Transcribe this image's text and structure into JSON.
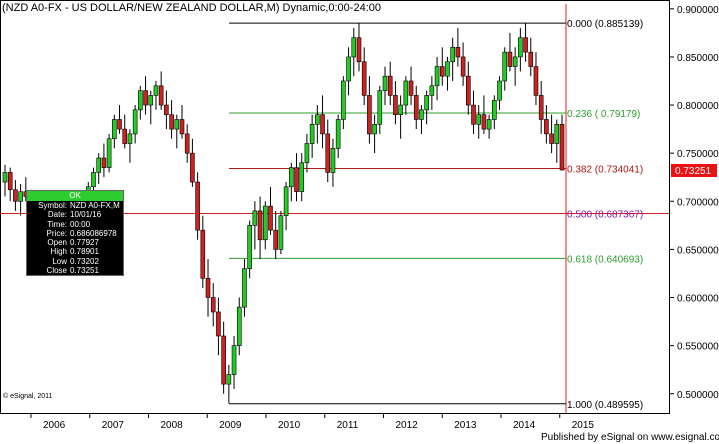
{
  "title": "(NZD A0-FX - US DOLLAR/NEW ZEALAND DOLLAR,M) Dynamic,0:00-24:00",
  "copyright": "© eSignal, 2011",
  "published": "Published by eSignal on www.esignal.com",
  "price_tag": "0.73251",
  "colors": {
    "up": "#22cc22",
    "down": "#cc2222",
    "bar": "#000000",
    "fib_green": "#2e9e2e",
    "fib_red": "#b01818",
    "fib_purple": "#7a1fa2",
    "fib_black": "#000000",
    "tag_bg": "#ee1111"
  },
  "data_box": {
    "header": "OK",
    "rows": [
      {
        "k": "Symbol:",
        "v": "NZD A0-FX,M"
      },
      {
        "k": "Date:",
        "v": "10/01/16"
      },
      {
        "k": "Time:",
        "v": "00:00"
      },
      {
        "k": "Price:",
        "v": "0.686086978"
      },
      {
        "k": "Open",
        "v": "0.77927"
      },
      {
        "k": "High",
        "v": "0.78901"
      },
      {
        "k": "Low",
        "v": "0.73202"
      },
      {
        "k": "Close",
        "v": "0.73251"
      }
    ]
  },
  "chart_data": {
    "type": "candlestick",
    "title": "(NZD A0-FX - US DOLLAR/NEW ZEALAND DOLLAR,M) Dynamic,0:00-24:00",
    "x_ticks": [
      "2006",
      "2007",
      "2008",
      "2009",
      "2010",
      "2011",
      "2012",
      "2013",
      "2014",
      "2015"
    ],
    "y_ticks": [
      "0.500000",
      "0.550000",
      "0.600000",
      "0.650000",
      "0.700000",
      "0.750000",
      "0.800000",
      "0.850000",
      "0.900000"
    ],
    "ylim": [
      0.48,
      0.905
    ],
    "fib_levels": [
      {
        "label": "0.000 (0.885139)",
        "value": 0.885139,
        "color": "#000000"
      },
      {
        "label": "0.236 ( 0.79179)",
        "value": 0.79179,
        "color": "#2e9e2e"
      },
      {
        "label": "0.382 (0.734041)",
        "value": 0.734041,
        "color": "#b01818"
      },
      {
        "label": "0.500 (0.687367)",
        "value": 0.687367,
        "color": "#7a1fa2"
      },
      {
        "label": "0.618 (0.640693)",
        "value": 0.640693,
        "color": "#2e9e2e"
      },
      {
        "label": "1.000 (0.489595)",
        "value": 0.489595,
        "color": "#000000"
      }
    ],
    "ohlc": [
      [
        0.72,
        0.738,
        0.705,
        0.73
      ],
      [
        0.73,
        0.735,
        0.7,
        0.712
      ],
      [
        0.712,
        0.722,
        0.69,
        0.7
      ],
      [
        0.7,
        0.718,
        0.685,
        0.71
      ],
      [
        0.71,
        0.725,
        0.7,
        0.705
      ],
      [
        0.705,
        0.712,
        0.68,
        0.69
      ],
      [
        0.69,
        0.7,
        0.66,
        0.665
      ],
      [
        0.665,
        0.68,
        0.64,
        0.65
      ],
      [
        0.65,
        0.668,
        0.63,
        0.66
      ],
      [
        0.66,
        0.68,
        0.64,
        0.675
      ],
      [
        0.675,
        0.69,
        0.66,
        0.68
      ],
      [
        0.68,
        0.695,
        0.67,
        0.688
      ],
      [
        0.688,
        0.7,
        0.672,
        0.68
      ],
      [
        0.68,
        0.692,
        0.66,
        0.67
      ],
      [
        0.67,
        0.69,
        0.655,
        0.685
      ],
      [
        0.685,
        0.705,
        0.675,
        0.7
      ],
      [
        0.7,
        0.72,
        0.69,
        0.715
      ],
      [
        0.715,
        0.735,
        0.705,
        0.73
      ],
      [
        0.73,
        0.75,
        0.718,
        0.745
      ],
      [
        0.745,
        0.76,
        0.725,
        0.735
      ],
      [
        0.735,
        0.77,
        0.73,
        0.765
      ],
      [
        0.765,
        0.79,
        0.755,
        0.785
      ],
      [
        0.785,
        0.8,
        0.77,
        0.775
      ],
      [
        0.775,
        0.79,
        0.755,
        0.76
      ],
      [
        0.76,
        0.775,
        0.74,
        0.77
      ],
      [
        0.77,
        0.8,
        0.76,
        0.795
      ],
      [
        0.795,
        0.82,
        0.785,
        0.815
      ],
      [
        0.815,
        0.83,
        0.79,
        0.8
      ],
      [
        0.8,
        0.815,
        0.78,
        0.81
      ],
      [
        0.81,
        0.825,
        0.795,
        0.82
      ],
      [
        0.82,
        0.835,
        0.795,
        0.8
      ],
      [
        0.8,
        0.815,
        0.775,
        0.79
      ],
      [
        0.79,
        0.805,
        0.765,
        0.775
      ],
      [
        0.775,
        0.79,
        0.755,
        0.785
      ],
      [
        0.785,
        0.8,
        0.765,
        0.77
      ],
      [
        0.77,
        0.78,
        0.74,
        0.75
      ],
      [
        0.75,
        0.765,
        0.715,
        0.72
      ],
      [
        0.72,
        0.73,
        0.66,
        0.67
      ],
      [
        0.67,
        0.685,
        0.61,
        0.62
      ],
      [
        0.62,
        0.64,
        0.58,
        0.6
      ],
      [
        0.6,
        0.615,
        0.57,
        0.585
      ],
      [
        0.585,
        0.6,
        0.54,
        0.56
      ],
      [
        0.56,
        0.575,
        0.5,
        0.51
      ],
      [
        0.51,
        0.53,
        0.49,
        0.52
      ],
      [
        0.52,
        0.56,
        0.505,
        0.55
      ],
      [
        0.55,
        0.6,
        0.54,
        0.59
      ],
      [
        0.59,
        0.64,
        0.58,
        0.63
      ],
      [
        0.63,
        0.68,
        0.62,
        0.675
      ],
      [
        0.675,
        0.7,
        0.65,
        0.69
      ],
      [
        0.69,
        0.705,
        0.64,
        0.66
      ],
      [
        0.66,
        0.7,
        0.65,
        0.695
      ],
      [
        0.695,
        0.715,
        0.665,
        0.67
      ],
      [
        0.67,
        0.69,
        0.64,
        0.65
      ],
      [
        0.65,
        0.69,
        0.645,
        0.685
      ],
      [
        0.685,
        0.72,
        0.67,
        0.715
      ],
      [
        0.715,
        0.74,
        0.7,
        0.735
      ],
      [
        0.735,
        0.75,
        0.7,
        0.71
      ],
      [
        0.71,
        0.75,
        0.7,
        0.74
      ],
      [
        0.74,
        0.77,
        0.73,
        0.76
      ],
      [
        0.76,
        0.79,
        0.745,
        0.78
      ],
      [
        0.78,
        0.8,
        0.76,
        0.79
      ],
      [
        0.79,
        0.81,
        0.755,
        0.77
      ],
      [
        0.77,
        0.785,
        0.72,
        0.73
      ],
      [
        0.73,
        0.765,
        0.715,
        0.755
      ],
      [
        0.755,
        0.79,
        0.745,
        0.785
      ],
      [
        0.785,
        0.83,
        0.775,
        0.825
      ],
      [
        0.825,
        0.86,
        0.81,
        0.85
      ],
      [
        0.85,
        0.88,
        0.83,
        0.87
      ],
      [
        0.87,
        0.885,
        0.835,
        0.845
      ],
      [
        0.845,
        0.86,
        0.8,
        0.81
      ],
      [
        0.81,
        0.83,
        0.76,
        0.77
      ],
      [
        0.77,
        0.79,
        0.75,
        0.78
      ],
      [
        0.78,
        0.82,
        0.77,
        0.815
      ],
      [
        0.815,
        0.84,
        0.8,
        0.83
      ],
      [
        0.83,
        0.845,
        0.8,
        0.81
      ],
      [
        0.81,
        0.825,
        0.78,
        0.79
      ],
      [
        0.79,
        0.81,
        0.765,
        0.8
      ],
      [
        0.8,
        0.83,
        0.79,
        0.825
      ],
      [
        0.825,
        0.84,
        0.8,
        0.81
      ],
      [
        0.81,
        0.82,
        0.775,
        0.785
      ],
      [
        0.785,
        0.8,
        0.77,
        0.795
      ],
      [
        0.795,
        0.815,
        0.78,
        0.81
      ],
      [
        0.81,
        0.83,
        0.795,
        0.82
      ],
      [
        0.82,
        0.85,
        0.805,
        0.84
      ],
      [
        0.84,
        0.86,
        0.82,
        0.83
      ],
      [
        0.83,
        0.85,
        0.815,
        0.845
      ],
      [
        0.845,
        0.87,
        0.825,
        0.86
      ],
      [
        0.86,
        0.88,
        0.84,
        0.85
      ],
      [
        0.85,
        0.865,
        0.82,
        0.83
      ],
      [
        0.83,
        0.845,
        0.79,
        0.8
      ],
      [
        0.8,
        0.815,
        0.77,
        0.78
      ],
      [
        0.78,
        0.8,
        0.765,
        0.79
      ],
      [
        0.79,
        0.81,
        0.77,
        0.775
      ],
      [
        0.775,
        0.79,
        0.765,
        0.785
      ],
      [
        0.785,
        0.81,
        0.775,
        0.805
      ],
      [
        0.805,
        0.83,
        0.795,
        0.825
      ],
      [
        0.825,
        0.86,
        0.815,
        0.855
      ],
      [
        0.855,
        0.875,
        0.835,
        0.84
      ],
      [
        0.84,
        0.86,
        0.82,
        0.85
      ],
      [
        0.85,
        0.88,
        0.835,
        0.87
      ],
      [
        0.87,
        0.885,
        0.845,
        0.855
      ],
      [
        0.855,
        0.87,
        0.83,
        0.84
      ],
      [
        0.84,
        0.855,
        0.8,
        0.81
      ],
      [
        0.81,
        0.825,
        0.77,
        0.785
      ],
      [
        0.785,
        0.8,
        0.76,
        0.77
      ],
      [
        0.77,
        0.79,
        0.75,
        0.76
      ],
      [
        0.76,
        0.785,
        0.74,
        0.78
      ],
      [
        0.78,
        0.79,
        0.732,
        0.7325
      ]
    ]
  }
}
